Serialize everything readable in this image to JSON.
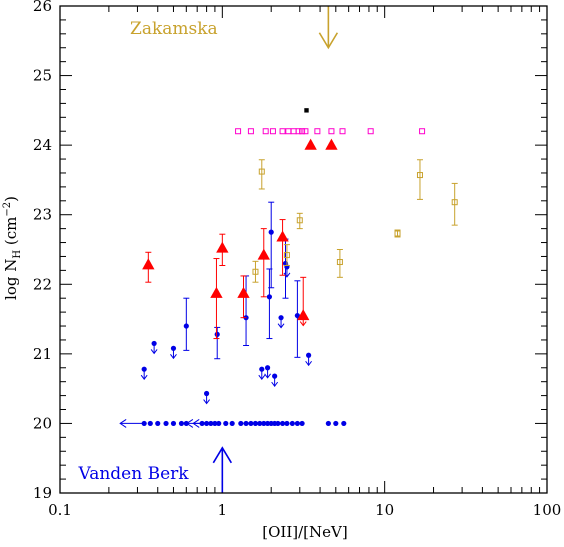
{
  "chart_data": {
    "type": "scatter",
    "xlabel": "[OII]/[NeV]",
    "ylabel_main": "log N",
    "ylabel_sub": "H",
    "ylabel_unit": "(cm",
    "ylabel_exp": "−2",
    "ylabel_close": ")",
    "xscale": "log",
    "xlim": [
      0.1,
      100
    ],
    "ylim": [
      19,
      26
    ],
    "xticks": [
      {
        "value": 0.1,
        "label": "0.1"
      },
      {
        "value": 1,
        "label": "1"
      },
      {
        "value": 10,
        "label": "10"
      },
      {
        "value": 100,
        "label": "100"
      }
    ],
    "yticks": [
      {
        "value": 19,
        "label": "19"
      },
      {
        "value": 20,
        "label": "20"
      },
      {
        "value": 21,
        "label": "21"
      },
      {
        "value": 22,
        "label": "22"
      },
      {
        "value": 23,
        "label": "23"
      },
      {
        "value": 24,
        "label": "24"
      },
      {
        "value": 25,
        "label": "25"
      },
      {
        "value": 26,
        "label": "26"
      }
    ],
    "grid": false,
    "annotations": [
      {
        "text": "Zakamska",
        "color": "#c8a22d",
        "arrow_x": 4.5,
        "arrow_from": 26,
        "arrow_to": 25.4,
        "label_x": 0.27,
        "label_y": 25.6
      },
      {
        "text": "Vanden Berk",
        "color": "#0000e6",
        "arrow_x": 1.0,
        "arrow_from": 19,
        "arrow_to": 19.65,
        "label_x": 0.13,
        "label_y": 19.2
      }
    ],
    "series": [
      {
        "marker": "circle",
        "color": "#0000e6",
        "points": [
          {
            "x": 0.33,
            "y": 20.78,
            "limit": "upper"
          },
          {
            "x": 0.38,
            "y": 21.15,
            "limit": "upper"
          },
          {
            "x": 0.5,
            "y": 21.08,
            "limit": "upper"
          },
          {
            "x": 0.6,
            "y": 21.4,
            "err": [
              0.35,
              0.4
            ]
          },
          {
            "x": 0.8,
            "y": 20.43,
            "limit": "upper"
          },
          {
            "x": 0.93,
            "y": 21.28,
            "err": [
              0.35,
              0.1
            ]
          },
          {
            "x": 1.4,
            "y": 21.52,
            "err": [
              0.4,
              0.6
            ]
          },
          {
            "x": 1.75,
            "y": 20.78,
            "limit": "upper"
          },
          {
            "x": 1.9,
            "y": 20.8,
            "limit": "upper"
          },
          {
            "x": 1.95,
            "y": 21.82,
            "err": [
              0.6,
              0.4
            ]
          },
          {
            "x": 2.0,
            "y": 22.75,
            "err": [
              0.8,
              0.43
            ]
          },
          {
            "x": 2.1,
            "y": 20.68,
            "limit": "upper"
          },
          {
            "x": 2.3,
            "y": 21.52,
            "limit": "upper"
          },
          {
            "x": 2.45,
            "y": 22.3,
            "err": [
              0.5,
              0.35
            ]
          },
          {
            "x": 2.5,
            "y": 22.25,
            "limit": "upper"
          },
          {
            "x": 2.9,
            "y": 21.55,
            "err": [
              0.6,
              0.5
            ]
          },
          {
            "x": 3.4,
            "y": 20.98,
            "limit": "upper"
          },
          {
            "x": 0.33,
            "y": 20.0
          },
          {
            "x": 0.36,
            "y": 20.0
          },
          {
            "x": 0.4,
            "y": 20.0
          },
          {
            "x": 0.45,
            "y": 20.0
          },
          {
            "x": 0.5,
            "y": 20.0
          },
          {
            "x": 0.56,
            "y": 20.0
          },
          {
            "x": 0.6,
            "y": 20.0
          },
          {
            "x": 0.75,
            "y": 20.0
          },
          {
            "x": 0.8,
            "y": 20.0
          },
          {
            "x": 0.85,
            "y": 20.0
          },
          {
            "x": 0.9,
            "y": 20.0
          },
          {
            "x": 0.95,
            "y": 20.0
          },
          {
            "x": 1.05,
            "y": 20.0
          },
          {
            "x": 1.15,
            "y": 20.0
          },
          {
            "x": 1.3,
            "y": 20.0
          },
          {
            "x": 1.4,
            "y": 20.0
          },
          {
            "x": 1.5,
            "y": 20.0
          },
          {
            "x": 1.6,
            "y": 20.0
          },
          {
            "x": 1.7,
            "y": 20.0
          },
          {
            "x": 1.8,
            "y": 20.0
          },
          {
            "x": 1.9,
            "y": 20.0
          },
          {
            "x": 2.0,
            "y": 20.0
          },
          {
            "x": 2.1,
            "y": 20.0
          },
          {
            "x": 2.2,
            "y": 20.0
          },
          {
            "x": 2.35,
            "y": 20.0
          },
          {
            "x": 2.5,
            "y": 20.0
          },
          {
            "x": 2.7,
            "y": 20.0
          },
          {
            "x": 2.9,
            "y": 20.0
          },
          {
            "x": 3.1,
            "y": 20.0
          },
          {
            "x": 4.5,
            "y": 20.0
          },
          {
            "x": 5.0,
            "y": 20.0
          },
          {
            "x": 5.6,
            "y": 20.0
          }
        ],
        "left_arrows": [
          {
            "x": 0.33,
            "y": 20.0
          },
          {
            "x": 0.85,
            "y": 20.0
          },
          {
            "x": 0.93,
            "y": 20.0
          }
        ]
      },
      {
        "marker": "triangle",
        "color": "#ff0000",
        "points": [
          {
            "x": 0.35,
            "y": 22.28,
            "err": [
              0.25,
              0.18
            ]
          },
          {
            "x": 0.92,
            "y": 21.87,
            "err": [
              0.65,
              0.5
            ]
          },
          {
            "x": 1.0,
            "y": 22.52,
            "err": [
              0.25,
              0.2
            ]
          },
          {
            "x": 1.35,
            "y": 21.87,
            "err": [
              0.35,
              0.25
            ]
          },
          {
            "x": 1.8,
            "y": 22.42,
            "err": [
              0.6,
              0.38
            ]
          },
          {
            "x": 2.35,
            "y": 22.68,
            "err": [
              0.55,
              0.25
            ]
          },
          {
            "x": 3.15,
            "y": 21.55,
            "err": [
              0.0,
              0.55
            ],
            "limit": "upper"
          },
          {
            "x": 3.5,
            "y": 24.0
          },
          {
            "x": 4.7,
            "y": 24.0
          }
        ]
      },
      {
        "marker": "open-square",
        "color": "#c8a22d",
        "points": [
          {
            "x": 1.6,
            "y": 22.18,
            "err": [
              0.15,
              0.15
            ]
          },
          {
            "x": 1.75,
            "y": 23.62,
            "err": [
              0.25,
              0.17
            ]
          },
          {
            "x": 2.5,
            "y": 22.42,
            "err": [
              0.15,
              0.15
            ]
          },
          {
            "x": 3.0,
            "y": 22.92,
            "err": [
              0.12,
              0.1
            ]
          },
          {
            "x": 5.3,
            "y": 22.32,
            "err": [
              0.22,
              0.18
            ]
          },
          {
            "x": 12.0,
            "y": 22.73,
            "err": [
              0.05,
              0.05
            ]
          },
          {
            "x": 16.5,
            "y": 23.57,
            "err": [
              0.35,
              0.22
            ]
          },
          {
            "x": 27.0,
            "y": 23.18,
            "err": [
              0.33,
              0.27
            ]
          }
        ]
      },
      {
        "marker": "open-square",
        "color": "#ff00cc",
        "points": [
          {
            "x": 1.25,
            "y": 24.2
          },
          {
            "x": 1.5,
            "y": 24.2
          },
          {
            "x": 1.85,
            "y": 24.2
          },
          {
            "x": 2.05,
            "y": 24.2
          },
          {
            "x": 2.35,
            "y": 24.2
          },
          {
            "x": 2.55,
            "y": 24.2
          },
          {
            "x": 2.75,
            "y": 24.2
          },
          {
            "x": 2.95,
            "y": 24.2
          },
          {
            "x": 3.1,
            "y": 24.2
          },
          {
            "x": 3.25,
            "y": 24.2
          },
          {
            "x": 3.85,
            "y": 24.2
          },
          {
            "x": 4.7,
            "y": 24.2
          },
          {
            "x": 5.5,
            "y": 24.2
          },
          {
            "x": 8.2,
            "y": 24.2
          },
          {
            "x": 17.0,
            "y": 24.2
          }
        ]
      },
      {
        "marker": "filled-square",
        "color": "#000000",
        "points": [
          {
            "x": 3.3,
            "y": 24.5
          }
        ]
      }
    ]
  }
}
